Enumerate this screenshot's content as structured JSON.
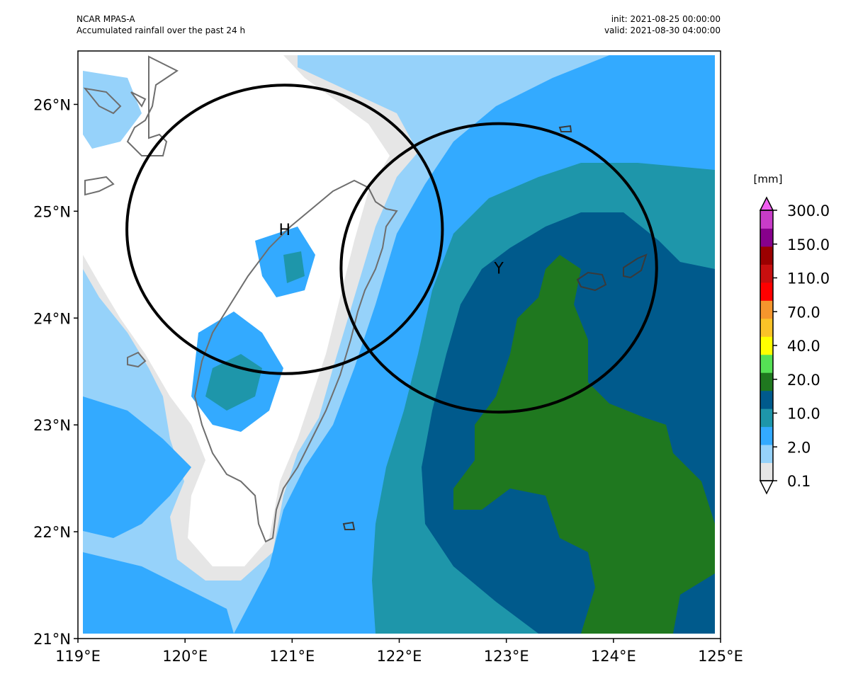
{
  "header": {
    "model": "NCAR MPAS-A",
    "description": "Accumulated rainfall over the past 24 h",
    "init": "init: 2021-08-25 00:00:00",
    "valid": "valid: 2021-08-30 04:00:00"
  },
  "map": {
    "lon_range": [
      119,
      125
    ],
    "lat_range": [
      21,
      26.5
    ],
    "x_ticks": [
      "119°E",
      "120°E",
      "121°E",
      "122°E",
      "123°E",
      "124°E",
      "125°E"
    ],
    "y_ticks": [
      "21°N",
      "22°N",
      "23°N",
      "24°N",
      "25°N",
      "26°N"
    ]
  },
  "markers": [
    {
      "label": "H",
      "lon": 120.93,
      "lat": 24.83,
      "radius_deg_lat": 1.35
    },
    {
      "label": "Y",
      "lon": 122.93,
      "lat": 24.47,
      "radius_deg_lat": 1.35
    }
  ],
  "colorbar": {
    "unit": "[mm]",
    "tick_labels": [
      "0.1",
      "2.0",
      "10.0",
      "20.0",
      "40.0",
      "70.0",
      "110.0",
      "150.0",
      "300.0"
    ],
    "colors": [
      "#ffffff",
      "#e6e6e6",
      "#96d2fa",
      "#33aaff",
      "#1e96aa",
      "#005a8c",
      "#1f781f",
      "#55e155",
      "#ffff00",
      "#fac328",
      "#f5962d",
      "#ff0000",
      "#c80f0f",
      "#9b0000",
      "#87008c",
      "#c83cc8",
      "#f05ef0"
    ]
  },
  "colors": {
    "frame": "#000000",
    "coast": "#6e6e6e",
    "circle": "#000000"
  }
}
